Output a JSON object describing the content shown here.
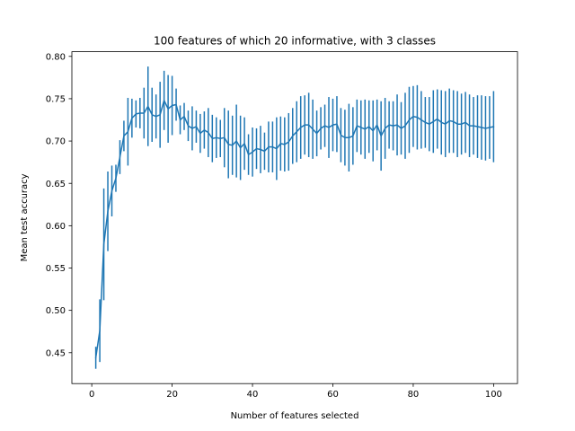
{
  "chart_data": {
    "type": "line",
    "title": "100 features of which 20 informative, with 3 classes",
    "xlabel": "Number of features selected",
    "ylabel": "Mean test accuracy",
    "xlim": [
      -4.95,
      105.95
    ],
    "ylim": [
      0.4135,
      0.8055
    ],
    "xticks": [
      0,
      20,
      40,
      60,
      80,
      100
    ],
    "xtick_labels": [
      "0",
      "20",
      "40",
      "60",
      "80",
      "100"
    ],
    "yticks": [
      0.45,
      0.5,
      0.55,
      0.6,
      0.65,
      0.7,
      0.75,
      0.8
    ],
    "ytick_labels": [
      "0.45",
      "0.50",
      "0.55",
      "0.60",
      "0.65",
      "0.70",
      "0.75",
      "0.80"
    ],
    "grid": false,
    "legend": false,
    "colors": {
      "series": "#1f77b4"
    },
    "series": [
      {
        "x": [
          1,
          2,
          3,
          4,
          5,
          6,
          7,
          8,
          9,
          10,
          11,
          12,
          13,
          14,
          15,
          16,
          17,
          18,
          19,
          20,
          21,
          22,
          23,
          24,
          25,
          26,
          27,
          28,
          29,
          30,
          31,
          32,
          33,
          34,
          35,
          36,
          37,
          38,
          39,
          40,
          41,
          42,
          43,
          44,
          45,
          46,
          47,
          48,
          49,
          50,
          51,
          52,
          53,
          54,
          55,
          56,
          57,
          58,
          59,
          60,
          61,
          62,
          63,
          64,
          65,
          66,
          67,
          68,
          69,
          70,
          71,
          72,
          73,
          74,
          75,
          76,
          77,
          78,
          79,
          80,
          81,
          82,
          83,
          84,
          85,
          86,
          87,
          88,
          89,
          90,
          91,
          92,
          93,
          94,
          95,
          96,
          97,
          98,
          99,
          100
        ],
        "y": [
          0.444,
          0.476,
          0.578,
          0.617,
          0.641,
          0.656,
          0.681,
          0.706,
          0.711,
          0.727,
          0.732,
          0.733,
          0.733,
          0.741,
          0.731,
          0.729,
          0.731,
          0.748,
          0.738,
          0.742,
          0.743,
          0.725,
          0.729,
          0.718,
          0.715,
          0.717,
          0.709,
          0.713,
          0.71,
          0.703,
          0.704,
          0.703,
          0.704,
          0.696,
          0.695,
          0.7,
          0.692,
          0.697,
          0.684,
          0.687,
          0.691,
          0.69,
          0.688,
          0.693,
          0.693,
          0.691,
          0.697,
          0.696,
          0.699,
          0.706,
          0.711,
          0.716,
          0.719,
          0.719,
          0.714,
          0.709,
          0.715,
          0.718,
          0.716,
          0.719,
          0.72,
          0.707,
          0.704,
          0.704,
          0.706,
          0.718,
          0.716,
          0.714,
          0.717,
          0.712,
          0.719,
          0.706,
          0.715,
          0.719,
          0.718,
          0.719,
          0.715,
          0.718,
          0.725,
          0.729,
          0.728,
          0.725,
          0.722,
          0.72,
          0.723,
          0.726,
          0.722,
          0.72,
          0.724,
          0.723,
          0.72,
          0.72,
          0.722,
          0.718,
          0.718,
          0.717,
          0.716,
          0.715,
          0.716,
          0.717
        ],
        "err": [
          0.013,
          0.037,
          0.066,
          0.047,
          0.03,
          0.016,
          0.02,
          0.018,
          0.04,
          0.023,
          0.016,
          0.018,
          0.03,
          0.047,
          0.032,
          0.026,
          0.039,
          0.035,
          0.04,
          0.035,
          0.019,
          0.017,
          0.016,
          0.018,
          0.026,
          0.019,
          0.023,
          0.022,
          0.029,
          0.028,
          0.024,
          0.022,
          0.035,
          0.04,
          0.035,
          0.043,
          0.038,
          0.031,
          0.024,
          0.029,
          0.024,
          0.028,
          0.022,
          0.03,
          0.03,
          0.037,
          0.032,
          0.032,
          0.034,
          0.033,
          0.036,
          0.037,
          0.035,
          0.038,
          0.035,
          0.027,
          0.025,
          0.025,
          0.036,
          0.031,
          0.033,
          0.032,
          0.033,
          0.04,
          0.034,
          0.031,
          0.032,
          0.035,
          0.031,
          0.036,
          0.03,
          0.041,
          0.036,
          0.028,
          0.029,
          0.036,
          0.031,
          0.039,
          0.039,
          0.036,
          0.038,
          0.034,
          0.03,
          0.032,
          0.037,
          0.035,
          0.038,
          0.039,
          0.038,
          0.037,
          0.039,
          0.036,
          0.036,
          0.037,
          0.034,
          0.037,
          0.038,
          0.038,
          0.037,
          0.042
        ]
      }
    ]
  }
}
